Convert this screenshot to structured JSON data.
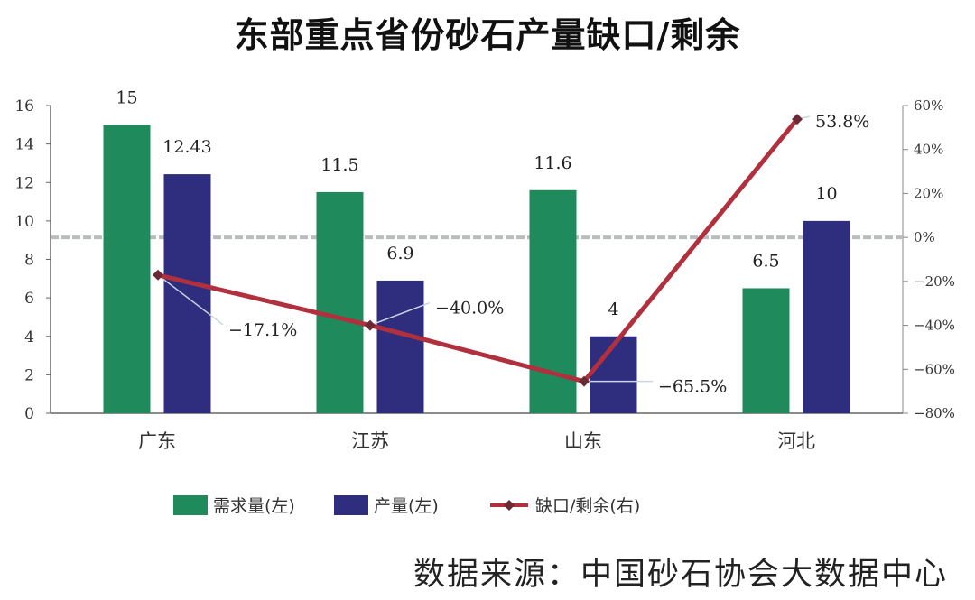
{
  "chart_data": {
    "type": "bar",
    "title": "东部重点省份砂石产量缺口/剩余",
    "categories": [
      "广东",
      "江苏",
      "山东",
      "河北"
    ],
    "series": [
      {
        "name": "需求量(左)",
        "kind": "bar",
        "axis": "left",
        "color": "#1f8a5b",
        "values": [
          15,
          11.5,
          11.6,
          6.5
        ],
        "labels": [
          "15",
          "11.5",
          "11.6",
          "6.5"
        ]
      },
      {
        "name": "产量(左)",
        "kind": "bar",
        "axis": "left",
        "color": "#2f2e7e",
        "values": [
          12.43,
          6.9,
          4,
          10
        ],
        "labels": [
          "12.43",
          "6.9",
          "4",
          "10"
        ]
      },
      {
        "name": "缺口/剩余(右)",
        "kind": "line",
        "axis": "right",
        "color": "#b0303e",
        "values": [
          -17.1,
          -40.0,
          -65.5,
          53.8
        ],
        "labels": [
          "−17.1%",
          "−40.0%",
          "−65.5%",
          "53.8%"
        ]
      }
    ],
    "y_left": {
      "min": 0,
      "max": 16,
      "ticks": [
        "0",
        "2",
        "4",
        "6",
        "8",
        "10",
        "12",
        "14",
        "16"
      ]
    },
    "y_right": {
      "min": -80,
      "max": 60,
      "ticks": [
        "−80%",
        "−60%",
        "−40%",
        "−20%",
        "0%",
        "20%",
        "40%",
        "60%"
      ]
    },
    "zero_line_right": "0%",
    "legend_position": "bottom",
    "grid": false
  },
  "source_text": "数据来源：中国砂石协会大数据中心"
}
